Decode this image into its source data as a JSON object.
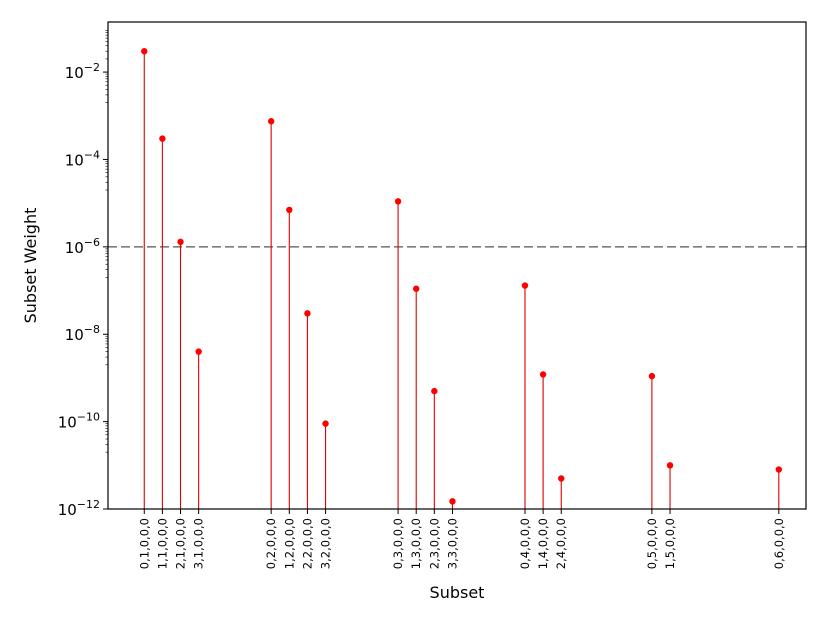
{
  "chart_data": {
    "type": "stem",
    "xlabel": "Subset",
    "ylabel": "Subset Weight",
    "yscale": "log",
    "ylim": [
      1e-12,
      0.14
    ],
    "yticks": [
      {
        "value": 0.01,
        "base": "10",
        "exp": "−2"
      },
      {
        "value": 0.0001,
        "base": "10",
        "exp": "−4"
      },
      {
        "value": 1e-06,
        "base": "10",
        "exp": "−6"
      },
      {
        "value": 1e-08,
        "base": "10",
        "exp": "−8"
      },
      {
        "value": 1e-10,
        "base": "10",
        "exp": "−10"
      },
      {
        "value": 1e-12,
        "base": "10",
        "exp": "−12"
      }
    ],
    "threshold": 1e-06,
    "colors": {
      "stem": "#e00000",
      "marker": "#ff0000",
      "threshold": "#555555",
      "axes": "#000000"
    },
    "xlim": [
      -1.0,
      35.0
    ],
    "points": [
      {
        "label": "0,1,0,0,0",
        "x": 0,
        "y": 0.03
      },
      {
        "label": "1,1,0,0,0",
        "x": 1,
        "y": 0.0003
      },
      {
        "label": "2,1,0,0,0",
        "x": 2,
        "y": 1.3e-06
      },
      {
        "label": "3,1,0,0,0",
        "x": 3,
        "y": 4e-09
      },
      {
        "label": "0,2,0,0,0",
        "x": 7,
        "y": 0.00075
      },
      {
        "label": "1,2,0,0,0",
        "x": 8,
        "y": 7e-06
      },
      {
        "label": "2,2,0,0,0",
        "x": 9,
        "y": 3e-08
      },
      {
        "label": "3,2,0,0,0",
        "x": 10,
        "y": 9e-11
      },
      {
        "label": "0,3,0,0,0",
        "x": 14,
        "y": 1.1e-05
      },
      {
        "label": "1,3,0,0,0",
        "x": 15,
        "y": 1.1e-07
      },
      {
        "label": "2,3,0,0,0",
        "x": 16,
        "y": 5e-10
      },
      {
        "label": "3,3,0,0,0",
        "x": 17,
        "y": 1.5e-12
      },
      {
        "label": "0,4,0,0,0",
        "x": 21,
        "y": 1.3e-07
      },
      {
        "label": "1,4,0,0,0",
        "x": 22,
        "y": 1.2e-09
      },
      {
        "label": "2,4,0,0,0",
        "x": 23,
        "y": 5e-12
      },
      {
        "label": "0,5,0,0,0",
        "x": 28,
        "y": 1.1e-09
      },
      {
        "label": "1,5,0,0,0",
        "x": 29,
        "y": 1e-11
      },
      {
        "label": "0,6,0,0,0",
        "x": 35,
        "y": 8e-12
      }
    ]
  }
}
